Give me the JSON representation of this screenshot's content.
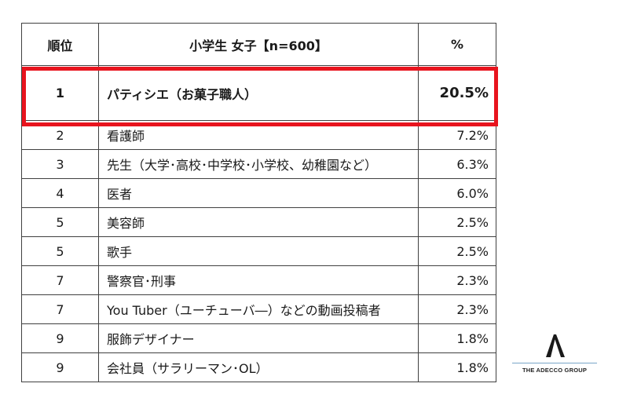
{
  "table": {
    "headers": {
      "rank": "順位",
      "occupation": "小学生 女子【n=600】",
      "percent": "%"
    },
    "rows": [
      {
        "rank": "1",
        "occupation": "パティシエ（お菓子職人）",
        "percent": "20.5%"
      },
      {
        "rank": "2",
        "occupation": "看護師",
        "percent": "7.2%"
      },
      {
        "rank": "3",
        "occupation": "先生（大学･高校･中学校･小学校、幼稚園など）",
        "percent": "6.3%"
      },
      {
        "rank": "4",
        "occupation": "医者",
        "percent": "6.0%"
      },
      {
        "rank": "5",
        "occupation": "美容師",
        "percent": "2.5%"
      },
      {
        "rank": "5",
        "occupation": "歌手",
        "percent": "2.5%"
      },
      {
        "rank": "7",
        "occupation": "警察官･刑事",
        "percent": "2.3%"
      },
      {
        "rank": "7",
        "occupation": "You Tuber（ユーチューバ―）などの動画投稿者",
        "percent": "2.3%"
      },
      {
        "rank": "9",
        "occupation": "服飾デザイナー",
        "percent": "1.8%"
      },
      {
        "rank": "9",
        "occupation": "会社員（サラリーマン･OL）",
        "percent": "1.8%"
      }
    ],
    "highlight_color": "#e8141e"
  },
  "logo": {
    "text": "THE ADECCO GROUP",
    "icon": "adecco-a-icon"
  }
}
